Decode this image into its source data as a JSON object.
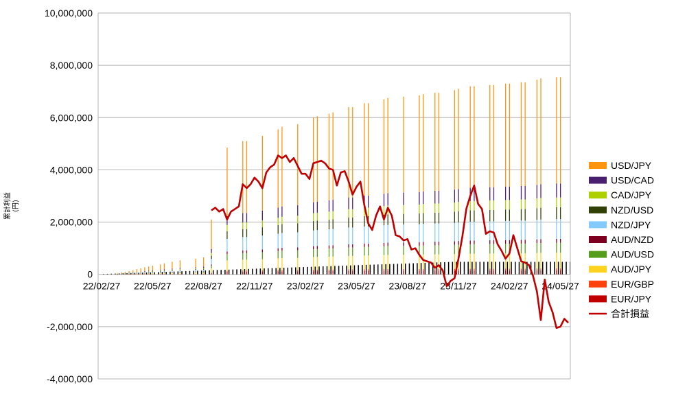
{
  "chart_data": {
    "type": "bar",
    "stacked": true,
    "title": "",
    "ylabel": "累計利益\n(円)",
    "xlabel": "",
    "ylim": [
      -4000000,
      10000000
    ],
    "yticks": [
      -4000000,
      -2000000,
      0,
      2000000,
      4000000,
      6000000,
      8000000,
      10000000
    ],
    "ytick_labels": [
      "-4,000,000",
      "-2,000,000",
      "0",
      "2,000,000",
      "4,000,000",
      "6,000,000",
      "8,000,000",
      "10,000,000"
    ],
    "xtick_labels": [
      "22/02/27",
      "22/05/27",
      "22/08/27",
      "22/11/27",
      "23/02/27",
      "23/05/27",
      "23/08/27",
      "23/11/27",
      "24/02/27",
      "24/05/27"
    ],
    "grid": "horizontal",
    "legend_position": "right",
    "line_series": {
      "name": "合計損益",
      "color": "#c00000",
      "points": [
        [
          28,
          2450000
        ],
        [
          29,
          2550000
        ],
        [
          30,
          2400000
        ],
        [
          31,
          2500000
        ],
        [
          32,
          2100000
        ],
        [
          33,
          2400000
        ],
        [
          34,
          2500000
        ],
        [
          35,
          2600000
        ],
        [
          36,
          3450000
        ],
        [
          37,
          3300000
        ],
        [
          38,
          3450000
        ],
        [
          39,
          3700000
        ],
        [
          40,
          3550000
        ],
        [
          41,
          3300000
        ],
        [
          42,
          3900000
        ],
        [
          43,
          4100000
        ],
        [
          44,
          4200000
        ],
        [
          45,
          4550000
        ],
        [
          46,
          4450000
        ],
        [
          47,
          4550000
        ],
        [
          48,
          4300000
        ],
        [
          49,
          4450000
        ],
        [
          50,
          4150000
        ],
        [
          51,
          3850000
        ],
        [
          52,
          3850000
        ],
        [
          53,
          3650000
        ],
        [
          54,
          4250000
        ],
        [
          55,
          4300000
        ],
        [
          56,
          4350000
        ],
        [
          57,
          4250000
        ],
        [
          58,
          4050000
        ],
        [
          59,
          4000000
        ],
        [
          60,
          3400000
        ],
        [
          61,
          3900000
        ],
        [
          62,
          3950000
        ],
        [
          63,
          3550000
        ],
        [
          64,
          3050000
        ],
        [
          65,
          3350000
        ],
        [
          66,
          3550000
        ],
        [
          67,
          2650000
        ],
        [
          68,
          1950000
        ],
        [
          69,
          1700000
        ],
        [
          70,
          2250000
        ],
        [
          71,
          2600000
        ],
        [
          72,
          2100000
        ],
        [
          73,
          2550000
        ],
        [
          74,
          2250000
        ],
        [
          75,
          1500000
        ],
        [
          76,
          1450000
        ],
        [
          77,
          1300000
        ],
        [
          78,
          1350000
        ],
        [
          79,
          950000
        ],
        [
          80,
          1000000
        ],
        [
          81,
          750000
        ],
        [
          82,
          550000
        ],
        [
          83,
          500000
        ],
        [
          84,
          450000
        ],
        [
          85,
          250000
        ],
        [
          86,
          350000
        ],
        [
          87,
          150000
        ],
        [
          88,
          -450000
        ],
        [
          89,
          -250000
        ],
        [
          90,
          -150000
        ],
        [
          91,
          600000
        ],
        [
          92,
          1450000
        ],
        [
          93,
          2500000
        ],
        [
          94,
          3000000
        ],
        [
          95,
          3400000
        ],
        [
          96,
          2700000
        ],
        [
          97,
          2500000
        ],
        [
          98,
          1550000
        ],
        [
          99,
          1650000
        ],
        [
          100,
          1600000
        ],
        [
          101,
          1150000
        ],
        [
          102,
          900000
        ],
        [
          103,
          600000
        ],
        [
          104,
          800000
        ],
        [
          105,
          1500000
        ],
        [
          106,
          1000000
        ],
        [
          107,
          500000
        ],
        [
          108,
          450000
        ],
        [
          109,
          350000
        ],
        [
          110,
          -50000
        ],
        [
          111,
          -650000
        ],
        [
          112,
          -1750000
        ],
        [
          113,
          -200000
        ],
        [
          114,
          -1050000
        ],
        [
          115,
          -1450000
        ],
        [
          116,
          -2050000
        ],
        [
          117,
          -2000000
        ],
        [
          118,
          -1700000
        ],
        [
          119,
          -1850000
        ]
      ]
    },
    "series": [
      {
        "name": "EUR/JPY",
        "color": "#c00000"
      },
      {
        "name": "EUR/GBP",
        "color": "#ff420e"
      },
      {
        "name": "AUD/JPY",
        "color": "#ffd320"
      },
      {
        "name": "AUD/USD",
        "color": "#579d1c"
      },
      {
        "name": "AUD/NZD",
        "color": "#7e0021"
      },
      {
        "name": "NZD/JPY",
        "color": "#83caff"
      },
      {
        "name": "NZD/USD",
        "color": "#314004"
      },
      {
        "name": "CAD/JPY",
        "color": "#aecf00"
      },
      {
        "name": "USD/CAD",
        "color": "#4b1f6f"
      },
      {
        "name": "USD/JPY",
        "color": "#ff950e"
      }
    ],
    "legend_order": [
      "USD/JPY",
      "USD/CAD",
      "CAD/JPY",
      "NZD/USD",
      "NZD/JPY",
      "AUD/NZD",
      "AUD/USD",
      "AUD/JPY",
      "EUR/GBP",
      "EUR/JPY",
      "合計損益"
    ],
    "bar_totals": {
      "description_free": true,
      "x_range": [
        0,
        119
      ],
      "points": [
        [
          4,
          50000
        ],
        [
          5,
          80000
        ],
        [
          6,
          100000
        ],
        [
          7,
          130000
        ],
        [
          8,
          160000
        ],
        [
          9,
          200000
        ],
        [
          10,
          230000
        ],
        [
          11,
          270000
        ],
        [
          12,
          300000
        ],
        [
          13,
          330000
        ],
        [
          15,
          380000
        ],
        [
          16,
          420000
        ],
        [
          18,
          480000
        ],
        [
          20,
          540000
        ],
        [
          24,
          600000
        ],
        [
          26,
          650000
        ],
        [
          28,
          2100000
        ],
        [
          32,
          4850000
        ],
        [
          36,
          5100000
        ],
        [
          37,
          5100000
        ],
        [
          41,
          5300000
        ],
        [
          45,
          5550000
        ],
        [
          46,
          5650000
        ],
        [
          50,
          5750000
        ],
        [
          54,
          6000000
        ],
        [
          55,
          6050000
        ],
        [
          58,
          6150000
        ],
        [
          59,
          6200000
        ],
        [
          63,
          6400000
        ],
        [
          64,
          6400000
        ],
        [
          67,
          6550000
        ],
        [
          68,
          6550000
        ],
        [
          72,
          6700000
        ],
        [
          73,
          6750000
        ],
        [
          77,
          6800000
        ],
        [
          81,
          6850000
        ],
        [
          82,
          6900000
        ],
        [
          85,
          6950000
        ],
        [
          86,
          6950000
        ],
        [
          90,
          7050000
        ],
        [
          91,
          7100000
        ],
        [
          94,
          7200000
        ],
        [
          95,
          7200000
        ],
        [
          99,
          7250000
        ],
        [
          100,
          7250000
        ],
        [
          103,
          7300000
        ],
        [
          104,
          7300000
        ],
        [
          107,
          7350000
        ],
        [
          108,
          7350000
        ],
        [
          111,
          7450000
        ],
        [
          112,
          7500000
        ],
        [
          116,
          7550000
        ],
        [
          117,
          7550000
        ]
      ]
    }
  },
  "legend_labels": [
    "USD/JPY",
    "USD/CAD",
    "CAD/JPY",
    "NZD/USD",
    "NZD/JPY",
    "AUD/NZD",
    "AUD/USD",
    "AUD/JPY",
    "EUR/GBP",
    "EUR/JPY",
    "合計損益"
  ]
}
